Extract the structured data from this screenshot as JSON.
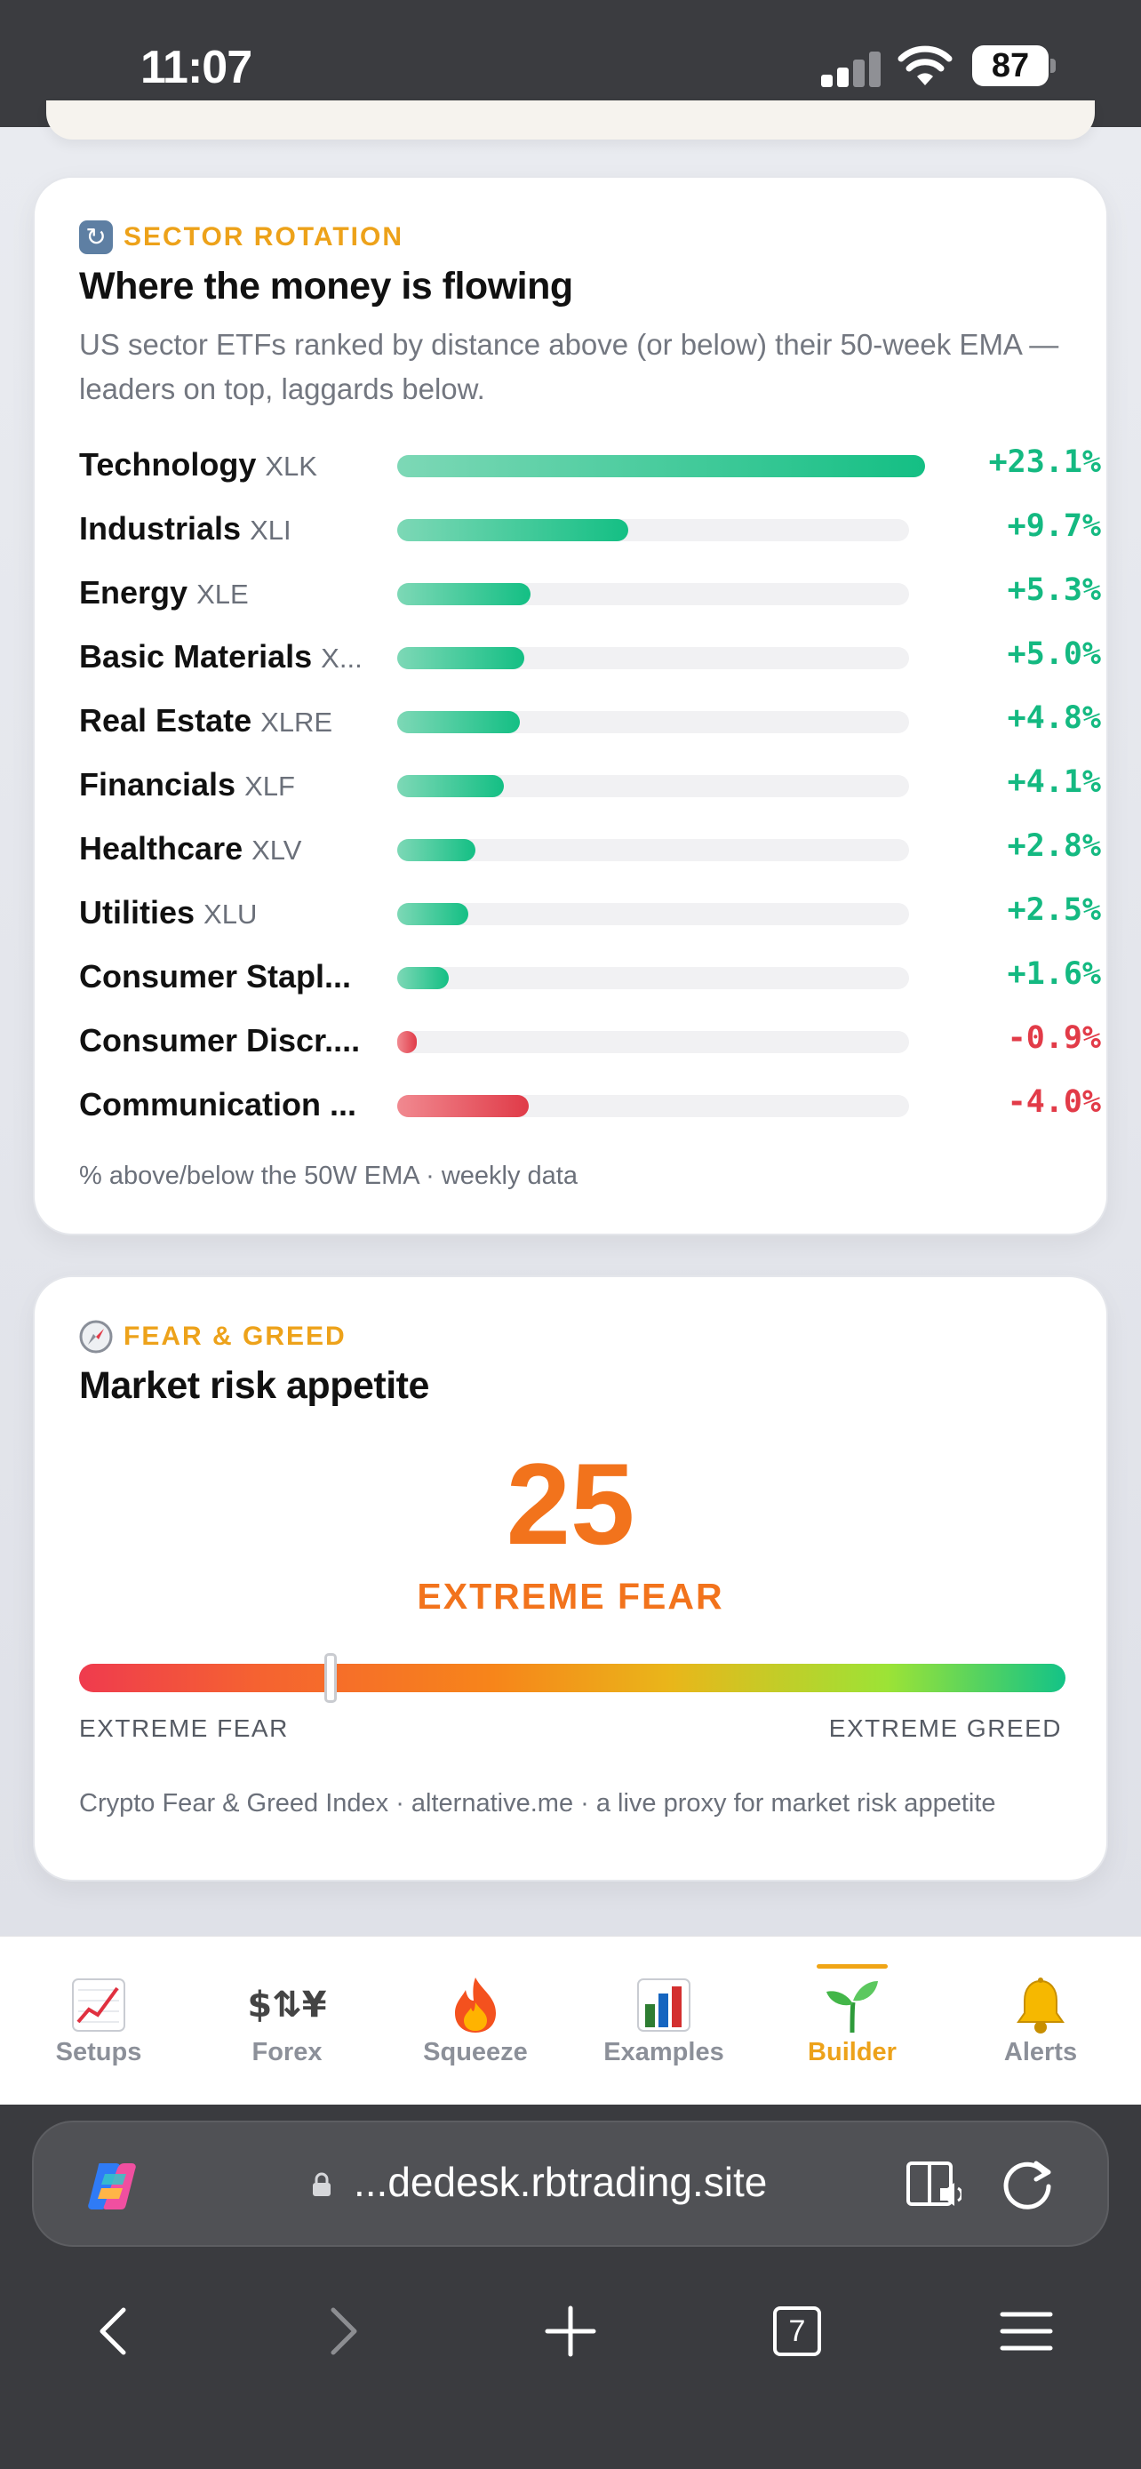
{
  "status_bar": {
    "time": "11:07",
    "battery": "87"
  },
  "sector_card": {
    "eyebrow": "SECTOR ROTATION",
    "title": "Where the money is flowing",
    "subtitle": "US sector ETFs ranked by distance above (or below) their 50-week EMA — leaders on top, laggards below.",
    "rows": [
      {
        "name": "Technology",
        "ticker": "XLK",
        "value": "+23.1%",
        "pct": 23.1
      },
      {
        "name": "Industrials",
        "ticker": "XLI",
        "value": "+9.7%",
        "pct": 9.7
      },
      {
        "name": "Energy",
        "ticker": "XLE",
        "value": "+5.3%",
        "pct": 5.3
      },
      {
        "name": "Basic Materials",
        "ticker": "X...",
        "value": "+5.0%",
        "pct": 5.0
      },
      {
        "name": "Real Estate",
        "ticker": "XLRE",
        "value": "+4.8%",
        "pct": 4.8
      },
      {
        "name": "Financials",
        "ticker": "XLF",
        "value": "+4.1%",
        "pct": 4.1
      },
      {
        "name": "Healthcare",
        "ticker": "XLV",
        "value": "+2.8%",
        "pct": 2.8
      },
      {
        "name": "Utilities",
        "ticker": "XLU",
        "value": "+2.5%",
        "pct": 2.5
      },
      {
        "name": "Consumer Stapl...",
        "ticker": "",
        "value": "+1.6%",
        "pct": 1.6
      },
      {
        "name": "Consumer Discr....",
        "ticker": "",
        "value": "-0.9%",
        "pct": -0.9
      },
      {
        "name": "Communication ...",
        "ticker": "",
        "value": "-4.0%",
        "pct": -4.0
      }
    ],
    "footnote": "% above/below the 50W EMA · weekly data"
  },
  "fear_greed_card": {
    "eyebrow": "FEAR & GREED",
    "title": "Market risk appetite",
    "value": "25",
    "label": "EXTREME FEAR",
    "gauge_position": 0.25,
    "left_label": "EXTREME FEAR",
    "right_label": "EXTREME GREED",
    "note": "Crypto Fear & Greed Index · alternative.me · a live proxy for market risk appetite"
  },
  "tab_bar": {
    "tabs": [
      {
        "label": "Setups",
        "icon": "chart-increasing-icon"
      },
      {
        "label": "Forex",
        "icon": "currency-exchange-icon"
      },
      {
        "label": "Squeeze",
        "icon": "fire-icon"
      },
      {
        "label": "Examples",
        "icon": "bar-chart-icon"
      },
      {
        "label": "Builder",
        "icon": "seedling-icon",
        "active": true
      },
      {
        "label": "Alerts",
        "icon": "bell-icon"
      }
    ]
  },
  "browser": {
    "url": "...dedesk.rbtrading.site",
    "tab_count": "7"
  },
  "colors": {
    "accent": "#eda21a",
    "positive": "#14b981",
    "negative": "#e23b48",
    "fear": "#f2731c"
  }
}
